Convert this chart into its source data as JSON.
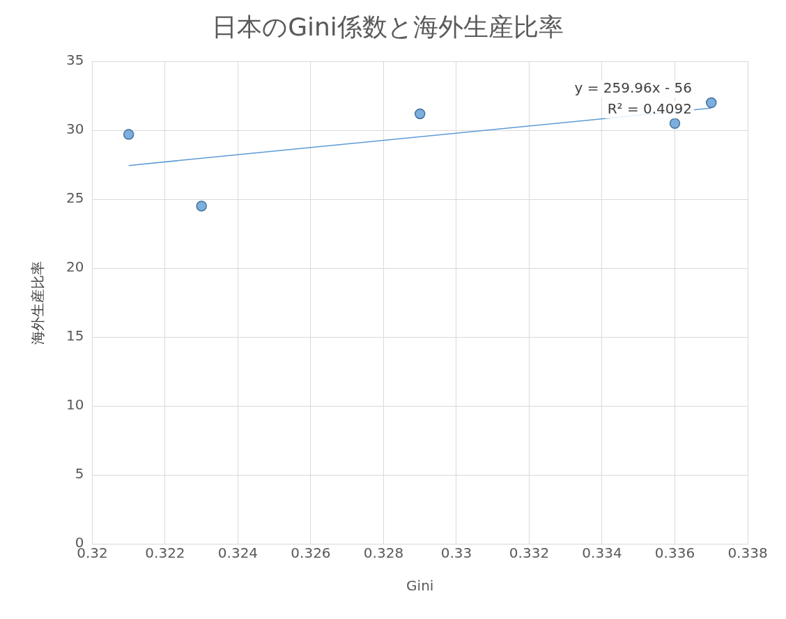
{
  "chart_data": {
    "type": "scatter",
    "title": "日本のGini係数と海外生産比率",
    "xlabel": "Gini",
    "ylabel": "海外生産比率",
    "series": [
      {
        "color": "#5b9bd5",
        "x": [
          0.321,
          0.323,
          0.329,
          0.336,
          0.337
        ],
        "values": [
          29.7,
          24.5,
          31.2,
          30.5,
          32.0
        ]
      },
      {
        "type": "line",
        "color": "#5b9bd5",
        "x": [
          0.321,
          0.337
        ],
        "values": [
          27.45,
          31.61
        ],
        "marker": "none"
      }
    ],
    "annotations": [
      "y = 259.96x - 56",
      "R² = 0.4092"
    ],
    "xlim": [
      0.32,
      0.338
    ],
    "xticks": [
      0.32,
      0.322,
      0.324,
      0.326,
      0.328,
      0.33,
      0.332,
      0.334,
      0.336,
      0.338
    ],
    "ylim": [
      0,
      35
    ],
    "yticks": [
      0,
      5,
      10,
      15,
      20,
      25,
      30,
      35
    ],
    "grid": true,
    "legend": false,
    "marker": "circle"
  }
}
